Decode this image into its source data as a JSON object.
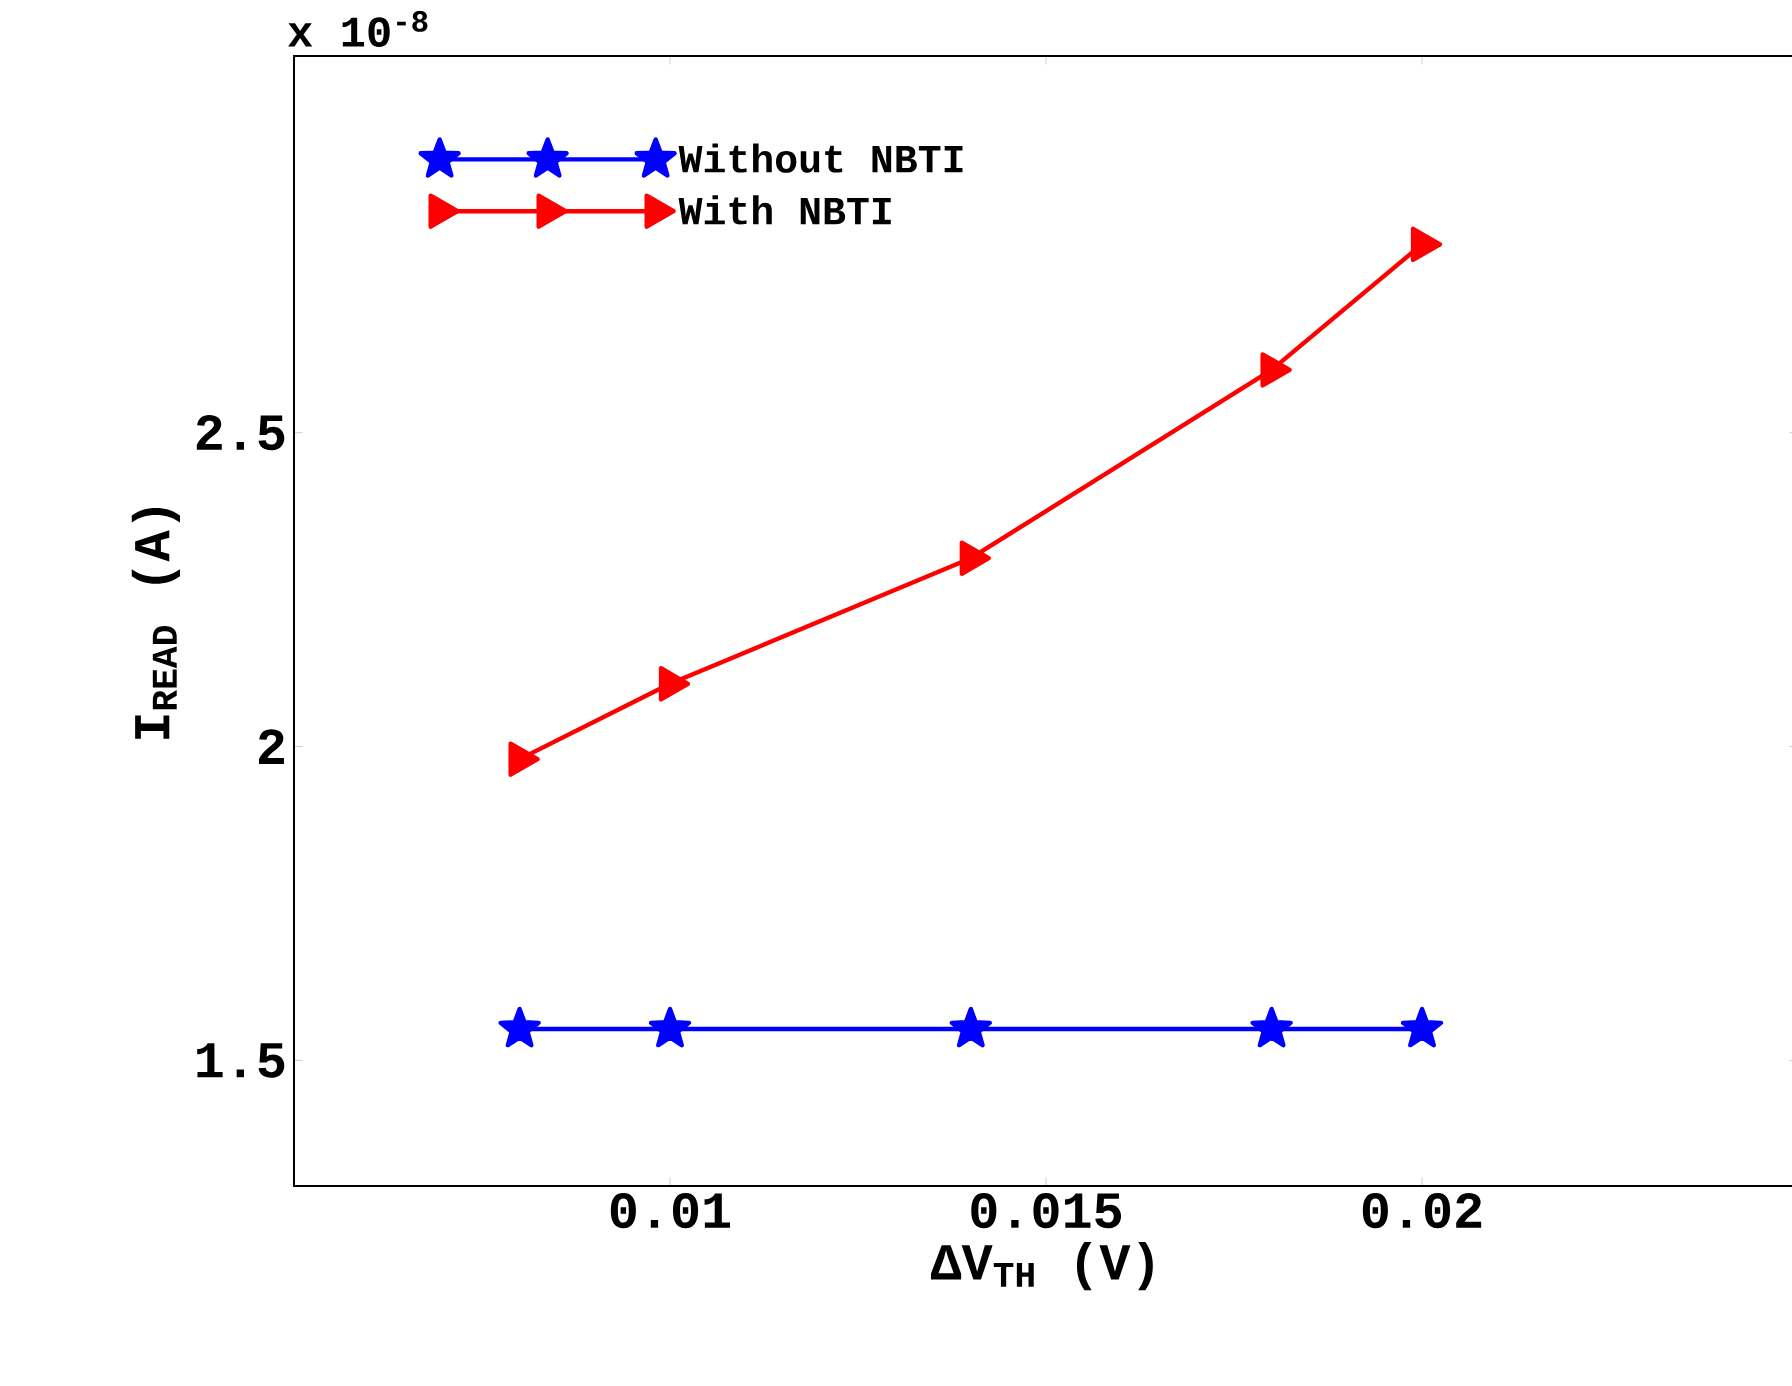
{
  "chart_data": {
    "type": "line",
    "xlabel": "ΔV$_{TH}$ (V)",
    "ylabel": "I$_{READ}$ (A)",
    "annotations": [
      "x 10$^{-8}$"
    ],
    "x": [
      0.008,
      0.01,
      0.014,
      0.018,
      0.02
    ],
    "series": [
      {
        "name": "Without NBTI",
        "color": "#0000ff",
        "marker": "star",
        "values": [
          1.55,
          1.55,
          1.55,
          1.55,
          1.55
        ]
      },
      {
        "name": "With NBTI",
        "color": "#ff0000",
        "marker": "triangle",
        "values": [
          1.98,
          2.1,
          2.3,
          2.6,
          2.8
        ]
      }
    ],
    "xlim": [
      0.005,
      0.025
    ],
    "ylim": [
      1.3,
      3.1
    ],
    "xticks": [
      0.01,
      0.015,
      0.02
    ],
    "yticks": [
      1.5,
      2,
      2.5
    ],
    "legend": "top left",
    "grid": false,
    "line_style": "solid"
  }
}
